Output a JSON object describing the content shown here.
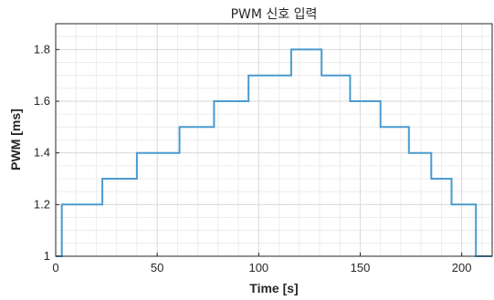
{
  "chart_data": {
    "type": "line",
    "title": "PWM 신호 입력",
    "xlabel": "Time [s]",
    "ylabel": "PWM [ms]",
    "xlim": [
      0,
      215
    ],
    "ylim": [
      1,
      1.9
    ],
    "xticks": [
      0,
      50,
      100,
      150,
      200
    ],
    "yticks": [
      1,
      1.2,
      1.4,
      1.6,
      1.8
    ],
    "xtick_labels": [
      "0",
      "50",
      "100",
      "150",
      "200"
    ],
    "ytick_labels": [
      "1",
      "1.2",
      "1.4",
      "1.6",
      "1.8"
    ],
    "grid": true,
    "minor_grid": true,
    "step": true,
    "line_color": "#4a9bd0",
    "series": [
      {
        "x": [
          0,
          3,
          3,
          23,
          23,
          40,
          40,
          61,
          61,
          78,
          78,
          95,
          95,
          116,
          116,
          131,
          131,
          145,
          145,
          160,
          160,
          174,
          174,
          185,
          185,
          195,
          195,
          207,
          207,
          215
        ],
        "y": [
          1,
          1,
          1.2,
          1.2,
          1.3,
          1.3,
          1.4,
          1.4,
          1.5,
          1.5,
          1.6,
          1.6,
          1.7,
          1.7,
          1.8,
          1.8,
          1.7,
          1.7,
          1.6,
          1.6,
          1.5,
          1.5,
          1.4,
          1.4,
          1.3,
          1.3,
          1.2,
          1.2,
          1,
          1
        ]
      }
    ]
  }
}
